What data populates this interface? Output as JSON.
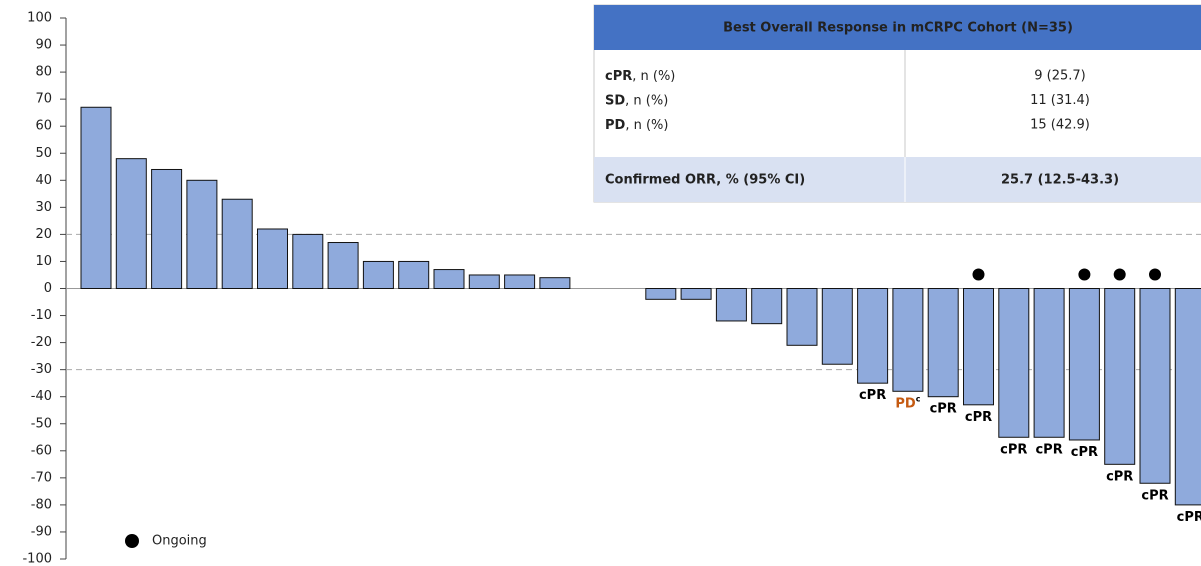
{
  "chart_data": {
    "type": "waterfall",
    "values": [
      67,
      48,
      44,
      40,
      33,
      22,
      20,
      17,
      10,
      10,
      7,
      5,
      5,
      4,
      0,
      0,
      -4,
      -4,
      -12,
      -13,
      -21,
      -28,
      -35,
      -38,
      -40,
      -43,
      -55,
      -55,
      -56,
      -65,
      -72,
      -80
    ],
    "bar_labels": [
      null,
      null,
      null,
      null,
      null,
      null,
      null,
      null,
      null,
      null,
      null,
      null,
      null,
      null,
      null,
      null,
      null,
      null,
      null,
      null,
      null,
      null,
      "cPR",
      "PD",
      "cPR",
      "cPR",
      "cPR",
      "cPR",
      "cPR",
      "cPR",
      "cPR",
      "cPR"
    ],
    "bar_label_notes": [
      null,
      null,
      null,
      null,
      null,
      null,
      null,
      null,
      null,
      null,
      null,
      null,
      null,
      null,
      null,
      null,
      null,
      null,
      null,
      null,
      null,
      null,
      null,
      "c",
      null,
      null,
      null,
      null,
      null,
      null,
      null,
      null
    ],
    "label_colors": {
      "cPR": "#000000",
      "PD": "#c55a11"
    },
    "ongoing": [
      false,
      false,
      false,
      false,
      false,
      false,
      false,
      false,
      false,
      false,
      false,
      false,
      false,
      false,
      false,
      false,
      false,
      false,
      false,
      false,
      false,
      false,
      false,
      false,
      false,
      true,
      false,
      false,
      true,
      true,
      true,
      false
    ],
    "color": "#8faadc",
    "ylim": [
      -100,
      100
    ],
    "yticks": [
      -100,
      -90,
      -80,
      -70,
      -60,
      -50,
      -40,
      -30,
      -20,
      -10,
      0,
      10,
      20,
      30,
      40,
      50,
      60,
      70,
      80,
      90,
      100
    ],
    "reference_lines": [
      20,
      -30
    ],
    "legend": {
      "label": "Ongoing"
    },
    "table": {
      "title": "Best Overall Response in mCRPC Cohort (N=35)",
      "rows": [
        {
          "label_bold": "cPR",
          "label_rest": ", n (%)",
          "value": "9 (25.7)"
        },
        {
          "label_bold": "SD",
          "label_rest": ", n (%)",
          "value": "11 (31.4)"
        },
        {
          "label_bold": "PD",
          "label_rest": ", n (%)",
          "value": "15 (42.9)"
        }
      ],
      "footer": {
        "label": "Confirmed ORR, % (95% CI)",
        "value": "25.7 (12.5-43.3)"
      }
    }
  }
}
